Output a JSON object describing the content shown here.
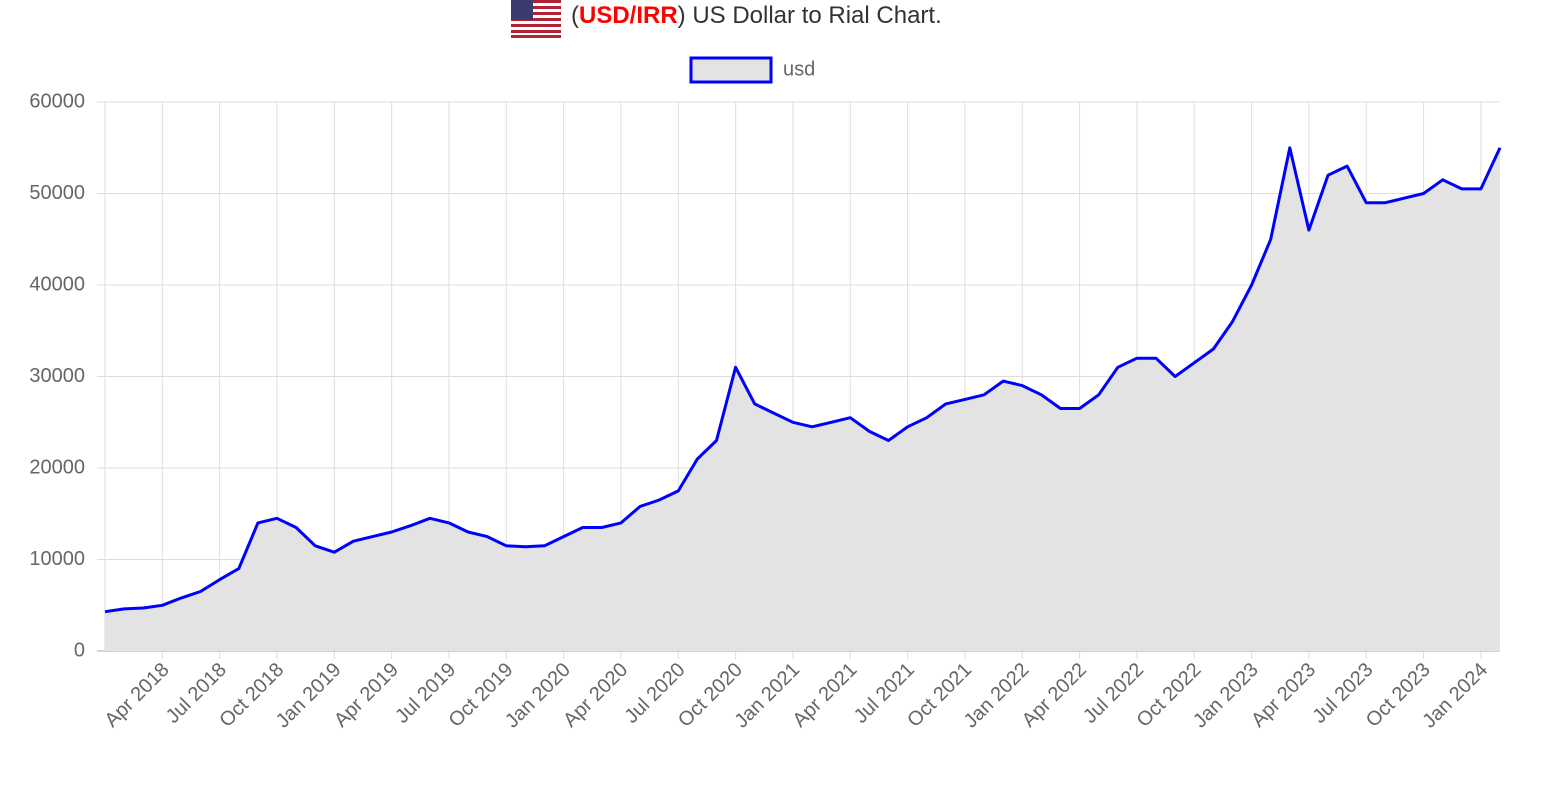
{
  "chart_data": {
    "type": "area",
    "title": [
      "(",
      "USD/IRR",
      ") US Dollar to Rial Chart."
    ],
    "x": [
      "2018-01",
      "2018-02",
      "2018-03",
      "2018-04",
      "2018-05",
      "2018-06",
      "2018-07",
      "2018-08",
      "2018-09",
      "2018-10",
      "2018-11",
      "2018-12",
      "2019-01",
      "2019-02",
      "2019-03",
      "2019-04",
      "2019-05",
      "2019-06",
      "2019-07",
      "2019-08",
      "2019-09",
      "2019-10",
      "2019-11",
      "2019-12",
      "2020-01",
      "2020-02",
      "2020-03",
      "2020-04",
      "2020-05",
      "2020-06",
      "2020-07",
      "2020-08",
      "2020-09",
      "2020-10",
      "2020-11",
      "2020-12",
      "2021-01",
      "2021-02",
      "2021-03",
      "2021-04",
      "2021-05",
      "2021-06",
      "2021-07",
      "2021-08",
      "2021-09",
      "2021-10",
      "2021-11",
      "2021-12",
      "2022-01",
      "2022-02",
      "2022-03",
      "2022-04",
      "2022-05",
      "2022-06",
      "2022-07",
      "2022-08",
      "2022-09",
      "2022-10",
      "2022-11",
      "2022-12",
      "2023-01",
      "2023-02",
      "2023-03",
      "2023-04",
      "2023-05",
      "2023-06",
      "2023-07",
      "2023-08",
      "2023-09",
      "2023-10",
      "2023-11",
      "2023-12",
      "2024-01",
      "2024-02"
    ],
    "series": [
      {
        "name": "usd",
        "color": "#0000ff",
        "fill": "#e3e3e3",
        "values": [
          4300,
          4600,
          4700,
          5000,
          5800,
          6500,
          7800,
          9000,
          14000,
          14500,
          13500,
          11500,
          10800,
          12000,
          12500,
          13000,
          13700,
          14500,
          14000,
          13000,
          12500,
          11500,
          11400,
          11500,
          12500,
          13500,
          13500,
          14000,
          15800,
          16500,
          17500,
          21000,
          23000,
          31000,
          27000,
          26000,
          25000,
          24500,
          25000,
          25500,
          24000,
          23000,
          24500,
          25500,
          27000,
          27500,
          28000,
          29500,
          29000,
          28000,
          26500,
          26500,
          28000,
          31000,
          32000,
          32000,
          30000,
          31500,
          33000,
          36000,
          40000,
          45000,
          55000,
          46000,
          52000,
          53000,
          49000,
          49000,
          49500,
          50000,
          51500,
          50500,
          50500,
          55000
        ]
      }
    ],
    "xlim": [
      "2018-01",
      "2024-02"
    ],
    "xticks": [
      {
        "value": "2018-04",
        "label": "Apr 2018"
      },
      {
        "value": "2018-07",
        "label": "Jul 2018"
      },
      {
        "value": "2018-10",
        "label": "Oct 2018"
      },
      {
        "value": "2019-01",
        "label": "Jan 2019"
      },
      {
        "value": "2019-04",
        "label": "Apr 2019"
      },
      {
        "value": "2019-07",
        "label": "Jul 2019"
      },
      {
        "value": "2019-10",
        "label": "Oct 2019"
      },
      {
        "value": "2020-01",
        "label": "Jan 2020"
      },
      {
        "value": "2020-04",
        "label": "Apr 2020"
      },
      {
        "value": "2020-07",
        "label": "Jul 2020"
      },
      {
        "value": "2020-10",
        "label": "Oct 2020"
      },
      {
        "value": "2021-01",
        "label": "Jan 2021"
      },
      {
        "value": "2021-04",
        "label": "Apr 2021"
      },
      {
        "value": "2021-07",
        "label": "Jul 2021"
      },
      {
        "value": "2021-10",
        "label": "Oct 2021"
      },
      {
        "value": "2022-01",
        "label": "Jan 2022"
      },
      {
        "value": "2022-04",
        "label": "Apr 2022"
      },
      {
        "value": "2022-07",
        "label": "Jul 2022"
      },
      {
        "value": "2022-10",
        "label": "Oct 2022"
      },
      {
        "value": "2023-01",
        "label": "Jan 2023"
      },
      {
        "value": "2023-04",
        "label": "Apr 2023"
      },
      {
        "value": "2023-07",
        "label": "Jul 2023"
      },
      {
        "value": "2023-10",
        "label": "Oct 2023"
      },
      {
        "value": "2024-01",
        "label": "Jan 2024"
      }
    ],
    "ylim": [
      0,
      60000
    ],
    "yticks": [
      0,
      10000,
      20000,
      30000,
      40000,
      50000,
      60000
    ],
    "grid": true,
    "legend": "top"
  }
}
